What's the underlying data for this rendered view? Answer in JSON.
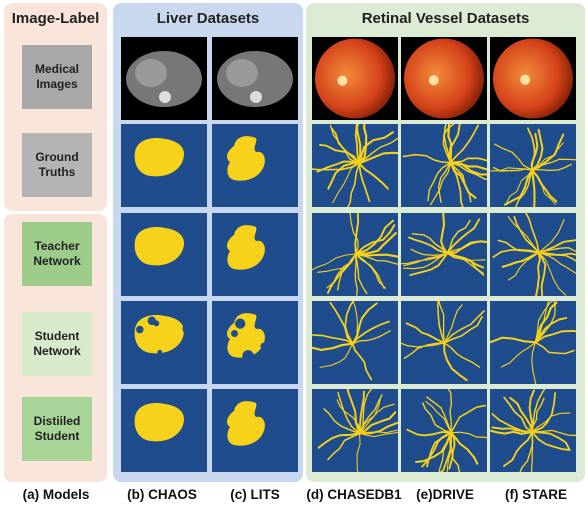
{
  "headers": {
    "models": "Image-Label",
    "liver": "Liver Datasets",
    "retinal": "Retinal Vessel Datasets"
  },
  "rows": [
    {
      "label": "Medical\nImages",
      "kind": "medical",
      "color": "#a8a8a8"
    },
    {
      "label": "Ground\nTruths",
      "kind": "gt",
      "color": "#b4b4b4"
    },
    {
      "label": "Teacher\nNetwork",
      "kind": "teacher",
      "color": "#9ccb8a"
    },
    {
      "label": "Student\nNetwork",
      "kind": "student",
      "color": "#d9e9cb"
    },
    {
      "label": "Distiiled\nStudent",
      "kind": "distilled",
      "color": "#a9d497"
    }
  ],
  "columns": [
    {
      "caption": "(a) Models"
    },
    {
      "caption": "(b) CHAOS",
      "dataset": "CHAOS",
      "type": "liver"
    },
    {
      "caption": "(c) LITS",
      "dataset": "LITS",
      "type": "liver"
    },
    {
      "caption": "(d) CHASEDB1",
      "dataset": "CHASEDB1",
      "type": "retina"
    },
    {
      "caption": "(e)DRIVE",
      "dataset": "DRIVE",
      "type": "retina"
    },
    {
      "caption": "(f) STARE",
      "dataset": "STARE",
      "type": "retina"
    }
  ],
  "colors": {
    "mask_background": "#1f4c8c",
    "mask_foreground": "#f6d21a",
    "models_panel": "#f9e5da",
    "liver_panel": "#c9d8ee",
    "retinal_panel": "#dcebd4",
    "ct_background": "#000000",
    "fundus": "#d5431a"
  }
}
